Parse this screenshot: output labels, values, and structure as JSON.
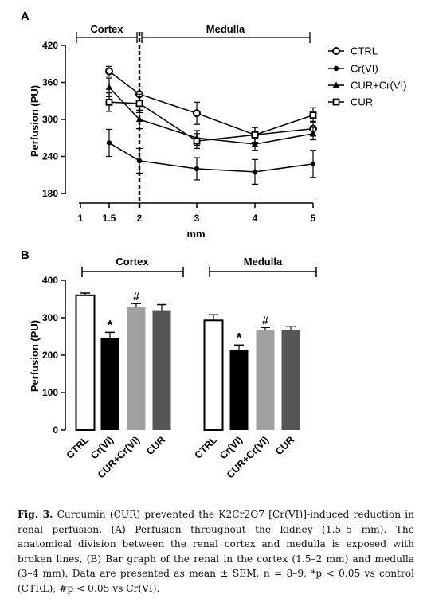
{
  "figure": {
    "panel_a_label": "A",
    "panel_b_label": "B",
    "caption": {
      "label": "Fig. 3.",
      "text": "Curcumin (CUR) prevented the K2Cr2O7 [Cr(VI)]-induced reduction in renal perfusion. (A) Perfusion throughout the kidney (1.5–5 mm). The anatomical division between the renal cortex and medulla is exposed with broken lines, (B) Bar graph of the renal in the cortex (1.5–2 mm) and medulla (3–4 mm). Data are presented as mean ± SEM, n = 8–9, *p < 0.05 vs control (CTRL); #p < 0.05 vs Cr(VI)."
    }
  },
  "colors": {
    "ctrl": "#ffffff",
    "crvi": "#000000",
    "cur_crvi": "#a0a0a0",
    "cur": "#555555"
  },
  "chart_data": [
    {
      "type": "line",
      "ylabel": "Perfusion (PU)",
      "xlabel": "mm",
      "x": [
        1.5,
        2,
        3,
        4,
        5
      ],
      "xticks": [
        "1",
        "1.5",
        "2",
        "3",
        "4",
        "5"
      ],
      "yticks": [
        "180",
        "240",
        "300",
        "360",
        "420"
      ],
      "ylim": [
        180,
        420
      ],
      "region_labels": [
        "Cortex",
        "Medulla"
      ],
      "divider_x": 2,
      "legend_position": "right",
      "series": [
        {
          "name": "CTRL",
          "marker": "open-circle",
          "values": [
            378,
            341,
            310,
            275,
            285
          ],
          "errors": [
            8,
            10,
            18,
            12,
            12
          ]
        },
        {
          "name": "Cr(VI)",
          "marker": "filled-circle",
          "values": [
            262,
            233,
            220,
            215,
            228
          ],
          "errors": [
            22,
            20,
            18,
            20,
            22
          ]
        },
        {
          "name": "CUR+Cr(VI)",
          "marker": "triangle",
          "values": [
            352,
            300,
            270,
            260,
            277
          ],
          "errors": [
            15,
            15,
            12,
            10,
            10
          ]
        },
        {
          "name": "CUR",
          "marker": "open-square",
          "values": [
            328,
            326,
            265,
            275,
            307
          ],
          "errors": [
            15,
            15,
            12,
            12,
            12
          ]
        }
      ]
    },
    {
      "type": "bar",
      "ylabel": "Perfusion (PU)",
      "yticks": [
        "0",
        "100",
        "200",
        "300",
        "400"
      ],
      "ylim": [
        0,
        400
      ],
      "groups": [
        {
          "label": "Cortex",
          "categories": [
            "CTRL",
            "Cr(VI)",
            "CUR+Cr(VI)",
            "CUR"
          ],
          "values": [
            360,
            245,
            328,
            320
          ],
          "errors": [
            6,
            16,
            10,
            15
          ],
          "annotations": [
            "",
            "*",
            "#",
            ""
          ]
        },
        {
          "label": "Medulla",
          "categories": [
            "CTRL",
            "Cr(VI)",
            "CUR+Cr(VI)",
            "CUR"
          ],
          "values": [
            293,
            213,
            268,
            268
          ],
          "errors": [
            15,
            14,
            6,
            8
          ],
          "annotations": [
            "",
            "*",
            "#",
            ""
          ]
        }
      ]
    }
  ]
}
